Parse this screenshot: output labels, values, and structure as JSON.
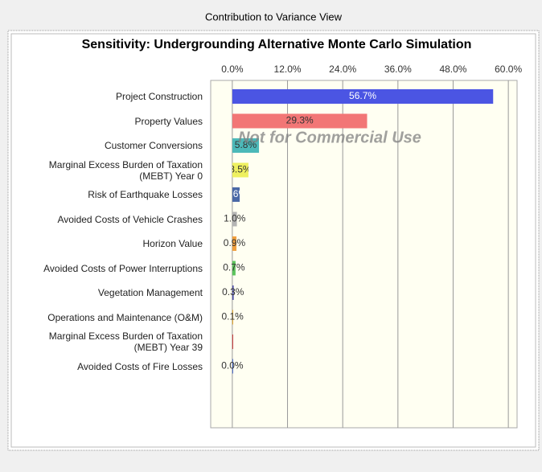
{
  "window_title": "Contribution to Variance View",
  "chart_data": {
    "type": "bar",
    "orientation": "horizontal",
    "title": "Sensitivity: Undergrounding Alternative Monte Carlo Simulation",
    "watermark": "Not for Commercial Use",
    "categories": [
      "Project Construction",
      "Property Values",
      "Customer Conversions",
      "Marginal Excess Burden of Taxation (MEBT) Year 0",
      "Risk of Earthquake Losses",
      "Avoided Costs of Vehicle Crashes",
      "Horizon Value",
      "Avoided Costs of Power Interruptions",
      "Vegetation Management",
      "Operations and Maintenance (O&M)",
      "Marginal Excess Burden of Taxation (MEBT) Year 39",
      "Avoided Costs of Fire Losses"
    ],
    "values": [
      56.7,
      29.3,
      5.8,
      3.5,
      1.6,
      1.0,
      0.9,
      0.7,
      0.3,
      0.1,
      0.1,
      0.0
    ],
    "value_labels": [
      "56.7%",
      "29.3%",
      "5.8%",
      "3.5%",
      "1.6%",
      "1.0%",
      "0.9%",
      "0.7%",
      "0.3%",
      "0.1%",
      null,
      "0.0%"
    ],
    "colors": [
      "#4b55e3",
      "#f27676",
      "#4cb9b9",
      "#eef060",
      "#4a68a6",
      "#b4b4b4",
      "#f0a040",
      "#5cc45c",
      "#5050a8",
      "#e0a020",
      "#c43030",
      "#4060c4"
    ],
    "xlim": [
      -4.7,
      61.9
    ],
    "xticks": [
      {
        "value": 0,
        "label": "0.0%"
      },
      {
        "value": 12,
        "label": "12.0%"
      },
      {
        "value": 24,
        "label": "24.0%"
      },
      {
        "value": 36,
        "label": "36.0%"
      },
      {
        "value": 48,
        "label": "48.0%"
      },
      {
        "value": 60,
        "label": "60.0%"
      }
    ],
    "grid": true
  }
}
